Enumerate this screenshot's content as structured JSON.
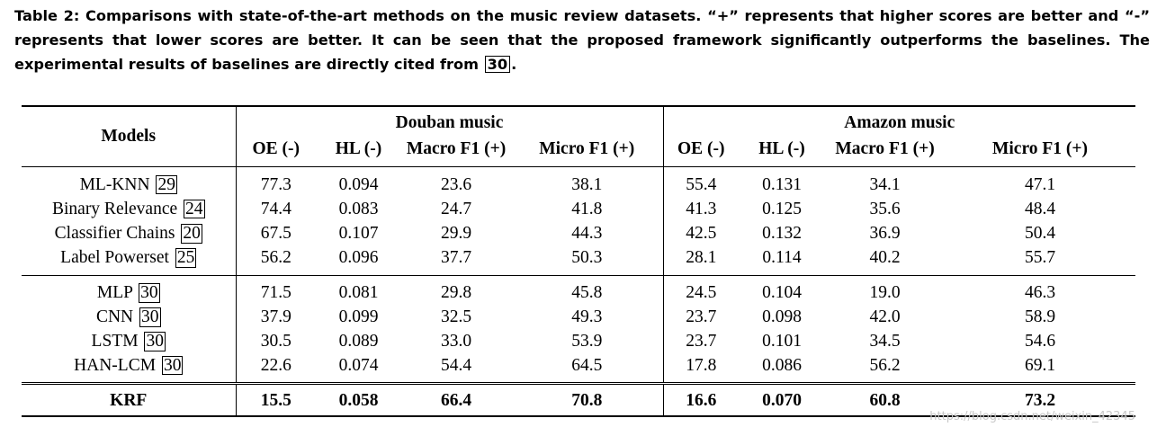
{
  "caption": {
    "part1": "Table 2: Comparisons with state-of-the-art methods on the music review datasets. “+” represents that higher scores are better and “-” represents that lower scores are better. It can be seen that the proposed framework significantly outperforms the baselines. The experimental results of baselines are directly cited from ",
    "cite": "30",
    "part2": "."
  },
  "header": {
    "models": "Models",
    "groups": [
      "Douban music",
      "Amazon music"
    ],
    "metrics": [
      "OE (-)",
      "HL (-)",
      "Macro F1 (+)",
      "Micro F1 (+)"
    ]
  },
  "groups": [
    {
      "rows": [
        {
          "model": "ML-KNN",
          "cite": "29",
          "values": [
            "77.3",
            "0.094",
            "23.6",
            "38.1",
            "55.4",
            "0.131",
            "34.1",
            "47.1"
          ]
        },
        {
          "model": "Binary Relevance",
          "cite": "24",
          "values": [
            "74.4",
            "0.083",
            "24.7",
            "41.8",
            "41.3",
            "0.125",
            "35.6",
            "48.4"
          ]
        },
        {
          "model": "Classifier Chains",
          "cite": "20",
          "values": [
            "67.5",
            "0.107",
            "29.9",
            "44.3",
            "42.5",
            "0.132",
            "36.9",
            "50.4"
          ]
        },
        {
          "model": "Label Powerset",
          "cite": "25",
          "values": [
            "56.2",
            "0.096",
            "37.7",
            "50.3",
            "28.1",
            "0.114",
            "40.2",
            "55.7"
          ]
        }
      ]
    },
    {
      "rows": [
        {
          "model": "MLP",
          "cite": "30",
          "values": [
            "71.5",
            "0.081",
            "29.8",
            "45.8",
            "24.5",
            "0.104",
            "19.0",
            "46.3"
          ]
        },
        {
          "model": "CNN",
          "cite": "30",
          "values": [
            "37.9",
            "0.099",
            "32.5",
            "49.3",
            "23.7",
            "0.098",
            "42.0",
            "58.9"
          ]
        },
        {
          "model": "LSTM",
          "cite": "30",
          "values": [
            "30.5",
            "0.089",
            "33.0",
            "53.9",
            "23.7",
            "0.101",
            "34.5",
            "54.6"
          ]
        },
        {
          "model": "HAN-LCM",
          "cite": "30",
          "values": [
            "22.6",
            "0.074",
            "54.4",
            "64.5",
            "17.8",
            "0.086",
            "56.2",
            "69.1"
          ]
        }
      ]
    },
    {
      "rows": [
        {
          "model": "KRF",
          "cite": "",
          "values": [
            "15.5",
            "0.058",
            "66.4",
            "70.8",
            "16.6",
            "0.070",
            "60.8",
            "73.2"
          ],
          "bold": true
        }
      ]
    }
  ],
  "watermark": "https://blog.csdn.net/weixin_42345"
}
